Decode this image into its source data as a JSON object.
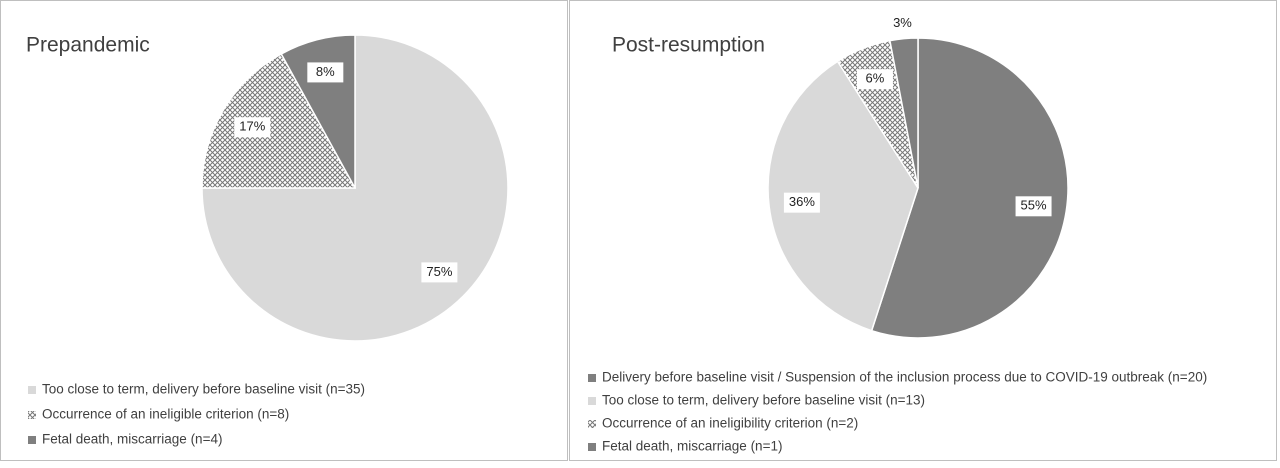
{
  "chart_data": [
    {
      "type": "pie",
      "title": "Prepandemic",
      "categories": [
        "Too close to term, delivery before baseline visit (n=35)",
        "Occurrence of an ineligible criterion (n=8)",
        "Fetal death, miscarriage (n=4)"
      ],
      "values": [
        75,
        17,
        8
      ],
      "value_labels": [
        "75%",
        "17%",
        "8%"
      ],
      "colors": [
        "#d9d9d9",
        "#8c8c8c",
        "#7f7f7f"
      ],
      "hatch": [
        false,
        true,
        false
      ]
    },
    {
      "type": "pie",
      "title": "Post-resumption",
      "categories": [
        "Delivery before baseline visit / Suspension of the inclusion process due to COVID-19 outbreak (n=20)",
        "Too close to term, delivery before baseline visit (n=13)",
        "Occurrence of an ineligibility criterion (n=2)",
        "Fetal death, miscarriage (n=1)"
      ],
      "values": [
        55,
        36,
        6,
        3
      ],
      "value_labels": [
        "55%",
        "36%",
        "6%",
        "3%"
      ],
      "colors": [
        "#7f7f7f",
        "#d9d9d9",
        "#a6a6a6",
        "#7f7f7f"
      ],
      "hatch": [
        false,
        false,
        true,
        false
      ]
    }
  ]
}
